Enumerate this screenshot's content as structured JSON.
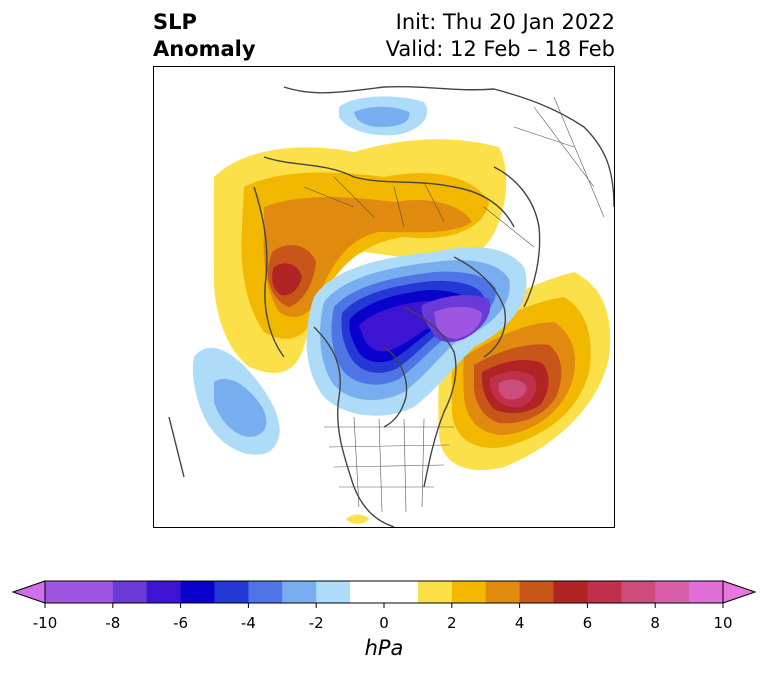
{
  "header": {
    "title_line1": "SLP",
    "title_line2": "Anomaly",
    "init_text": "Init: Thu 20 Jan 2022",
    "valid_text": "Valid: 12 Feb – 18 Feb"
  },
  "colorbar": {
    "unit": "hPa",
    "ticks": [
      "-10",
      "-8",
      "-6",
      "-4",
      "-2",
      "0",
      "2",
      "4",
      "6",
      "8",
      "10"
    ],
    "min": -10,
    "max": 10,
    "extend": "both",
    "bins": [
      {
        "from": -10,
        "to": -9,
        "color": "#9e55e0"
      },
      {
        "from": -9,
        "to": -8,
        "color": "#9e55e0"
      },
      {
        "from": -8,
        "to": -7,
        "color": "#6a3ad8"
      },
      {
        "from": -7,
        "to": -6,
        "color": "#3c14d2"
      },
      {
        "from": -6,
        "to": -5,
        "color": "#0a00cc"
      },
      {
        "from": -5,
        "to": -4,
        "color": "#2438d6"
      },
      {
        "from": -4,
        "to": -3,
        "color": "#4f74e6"
      },
      {
        "from": -3,
        "to": -2,
        "color": "#78aef0"
      },
      {
        "from": -2,
        "to": -1,
        "color": "#aedcf8"
      },
      {
        "from": -1,
        "to": 0,
        "color": "#ffffff"
      },
      {
        "from": 0,
        "to": 1,
        "color": "#ffffff"
      },
      {
        "from": 1,
        "to": 2,
        "color": "#fce04a"
      },
      {
        "from": 2,
        "to": 3,
        "color": "#f2b800"
      },
      {
        "from": 3,
        "to": 4,
        "color": "#e08a10"
      },
      {
        "from": 4,
        "to": 5,
        "color": "#c85618"
      },
      {
        "from": 5,
        "to": 6,
        "color": "#b02424"
      },
      {
        "from": 6,
        "to": 7,
        "color": "#c0304a"
      },
      {
        "from": 7,
        "to": 8,
        "color": "#cc4c7c"
      },
      {
        "from": 8,
        "to": 9,
        "color": "#d860aa"
      },
      {
        "from": 9,
        "to": 10,
        "color": "#e070d8"
      }
    ],
    "under_color": "#d070e8",
    "over_color": "#e878e0"
  }
}
